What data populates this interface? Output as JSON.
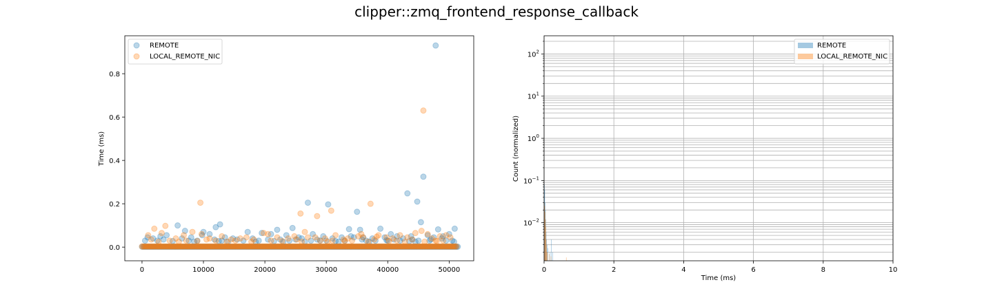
{
  "figure": {
    "title": "clipper::zmq_frontend_response_callback"
  },
  "colors": {
    "remote": "#1f77b4",
    "local": "#ff7f0e",
    "grid": "#b0b0b0"
  },
  "chart_data": [
    {
      "type": "scatter",
      "xlabel": "",
      "ylabel": "Time (ms)",
      "xlim": [
        -2800,
        54000
      ],
      "ylim": [
        -0.063,
        0.975
      ],
      "xticks": [
        0,
        10000,
        20000,
        30000,
        40000,
        50000
      ],
      "yticks": [
        0.0,
        0.2,
        0.4,
        0.6,
        0.8
      ],
      "xtick_labels": [
        "0",
        "10000",
        "20000",
        "30000",
        "40000",
        "50000"
      ],
      "ytick_labels": [
        "0.0",
        "0.2",
        "0.4",
        "0.6",
        "0.8"
      ],
      "grid": false,
      "legend": {
        "placement": "upper-left",
        "entries": [
          "REMOTE",
          "LOCAL_REMOTE_NIC"
        ]
      },
      "series": [
        {
          "name": "REMOTE",
          "color": "#1f77b4",
          "alpha": 0.3,
          "baseline": {
            "x_range": [
              0,
              51500
            ],
            "y": 0.002
          },
          "points": [
            [
              47800,
              0.93
            ],
            [
              45800,
              0.325
            ],
            [
              43200,
              0.248
            ],
            [
              44800,
              0.21
            ],
            [
              27000,
              0.205
            ],
            [
              30300,
              0.197
            ],
            [
              35000,
              0.163
            ],
            [
              5800,
              0.1
            ],
            [
              12700,
              0.105
            ],
            [
              12000,
              0.092
            ],
            [
              24500,
              0.088
            ],
            [
              33700,
              0.083
            ],
            [
              38800,
              0.085
            ],
            [
              35500,
              0.08
            ],
            [
              48200,
              0.082
            ],
            [
              50900,
              0.085
            ],
            [
              45400,
              0.115
            ],
            [
              22000,
              0.08
            ],
            [
              7000,
              0.075
            ],
            [
              10000,
              0.07
            ],
            [
              17200,
              0.07
            ],
            [
              9800,
              0.055
            ],
            [
              11000,
              0.06
            ],
            [
              13500,
              0.045
            ],
            [
              14800,
              0.04
            ],
            [
              19500,
              0.065
            ],
            [
              21000,
              0.06
            ],
            [
              23500,
              0.055
            ],
            [
              25500,
              0.045
            ],
            [
              27800,
              0.06
            ],
            [
              29500,
              0.05
            ],
            [
              31000,
              0.04
            ],
            [
              32500,
              0.045
            ],
            [
              34000,
              0.05
            ],
            [
              36000,
              0.045
            ],
            [
              37500,
              0.04
            ],
            [
              39500,
              0.045
            ],
            [
              40500,
              0.06
            ],
            [
              41500,
              0.05
            ],
            [
              42500,
              0.04
            ],
            [
              43800,
              0.05
            ],
            [
              46500,
              0.055
            ],
            [
              47500,
              0.045
            ],
            [
              49000,
              0.05
            ],
            [
              50000,
              0.06
            ],
            [
              900,
              0.045
            ],
            [
              1800,
              0.04
            ],
            [
              3000,
              0.05
            ],
            [
              4000,
              0.055
            ],
            [
              6500,
              0.04
            ],
            [
              8000,
              0.045
            ],
            [
              15500,
              0.035
            ],
            [
              18000,
              0.04
            ],
            [
              26000,
              0.04
            ],
            [
              28500,
              0.035
            ],
            [
              33000,
              0.03
            ],
            [
              38000,
              0.03
            ],
            [
              44000,
              0.035
            ],
            [
              48800,
              0.04
            ],
            [
              50800,
              0.025
            ],
            [
              3500,
              0.035
            ],
            [
              9000,
              0.03
            ],
            [
              16500,
              0.03
            ],
            [
              20500,
              0.035
            ],
            [
              24000,
              0.03
            ],
            [
              30000,
              0.03
            ],
            [
              36500,
              0.03
            ],
            [
              41000,
              0.035
            ],
            [
              45000,
              0.03
            ],
            [
              2500,
              0.03
            ],
            [
              11800,
              0.035
            ],
            [
              22500,
              0.035
            ],
            [
              34500,
              0.045
            ],
            [
              39800,
              0.032
            ],
            [
              46800,
              0.03
            ],
            [
              500,
              0.03
            ],
            [
              7600,
              0.03
            ],
            [
              13000,
              0.03
            ],
            [
              19000,
              0.03
            ],
            [
              25000,
              0.035
            ],
            [
              29000,
              0.03
            ],
            [
              35800,
              0.035
            ],
            [
              42000,
              0.03
            ],
            [
              47000,
              0.035
            ],
            [
              5000,
              0.028
            ],
            [
              12500,
              0.028
            ],
            [
              21500,
              0.028
            ],
            [
              27500,
              0.03
            ],
            [
              31500,
              0.028
            ],
            [
              40000,
              0.03
            ],
            [
              43500,
              0.028
            ],
            [
              49500,
              0.03
            ],
            [
              8500,
              0.025
            ],
            [
              14000,
              0.025
            ],
            [
              18500,
              0.025
            ],
            [
              23000,
              0.025
            ],
            [
              26500,
              0.025
            ],
            [
              32000,
              0.025
            ],
            [
              37000,
              0.025
            ],
            [
              44500,
              0.025
            ],
            [
              50500,
              0.03
            ]
          ]
        },
        {
          "name": "LOCAL_REMOTE_NIC",
          "color": "#ff7f0e",
          "alpha": 0.3,
          "baseline": {
            "x_range": [
              0,
              51200
            ],
            "y": 0.003
          },
          "points": [
            [
              45800,
              0.63
            ],
            [
              9500,
              0.205
            ],
            [
              37200,
              0.2
            ],
            [
              25800,
              0.155
            ],
            [
              30800,
              0.168
            ],
            [
              28500,
              0.143
            ],
            [
              3800,
              0.098
            ],
            [
              8200,
              0.07
            ],
            [
              2000,
              0.085
            ],
            [
              6800,
              0.055
            ],
            [
              9700,
              0.06
            ],
            [
              13000,
              0.05
            ],
            [
              17000,
              0.045
            ],
            [
              19800,
              0.065
            ],
            [
              20500,
              0.06
            ],
            [
              24800,
              0.05
            ],
            [
              26500,
              0.07
            ],
            [
              28200,
              0.045
            ],
            [
              31500,
              0.055
            ],
            [
              33500,
              0.04
            ],
            [
              35200,
              0.05
            ],
            [
              38500,
              0.055
            ],
            [
              39800,
              0.045
            ],
            [
              42000,
              0.055
            ],
            [
              44500,
              0.065
            ],
            [
              45500,
              0.075
            ],
            [
              46500,
              0.06
            ],
            [
              48500,
              0.05
            ],
            [
              49500,
              0.055
            ],
            [
              1000,
              0.055
            ],
            [
              3200,
              0.065
            ],
            [
              5500,
              0.04
            ],
            [
              11000,
              0.04
            ],
            [
              14500,
              0.035
            ],
            [
              16000,
              0.04
            ],
            [
              22000,
              0.045
            ],
            [
              23800,
              0.04
            ],
            [
              27000,
              0.045
            ],
            [
              29800,
              0.04
            ],
            [
              32800,
              0.035
            ],
            [
              36000,
              0.045
            ],
            [
              40800,
              0.04
            ],
            [
              43200,
              0.045
            ],
            [
              47200,
              0.04
            ],
            [
              50200,
              0.045
            ],
            [
              1500,
              0.035
            ],
            [
              4500,
              0.03
            ],
            [
              7200,
              0.03
            ],
            [
              10500,
              0.035
            ],
            [
              12000,
              0.03
            ],
            [
              15200,
              0.03
            ],
            [
              18200,
              0.035
            ],
            [
              21000,
              0.03
            ],
            [
              25200,
              0.035
            ],
            [
              29000,
              0.03
            ],
            [
              31000,
              0.03
            ],
            [
              34200,
              0.03
            ],
            [
              37800,
              0.035
            ],
            [
              41500,
              0.03
            ],
            [
              44000,
              0.035
            ],
            [
              47800,
              0.03
            ],
            [
              49000,
              0.03
            ],
            [
              2700,
              0.025
            ],
            [
              6000,
              0.025
            ],
            [
              9000,
              0.028
            ],
            [
              13800,
              0.025
            ],
            [
              17800,
              0.025
            ],
            [
              22800,
              0.028
            ],
            [
              26000,
              0.025
            ],
            [
              30200,
              0.025
            ],
            [
              33000,
              0.028
            ],
            [
              36800,
              0.025
            ],
            [
              40200,
              0.028
            ],
            [
              42800,
              0.025
            ],
            [
              46000,
              0.025
            ],
            [
              48000,
              0.028
            ],
            [
              38200,
              0.048
            ],
            [
              35700,
              0.06
            ]
          ]
        }
      ]
    },
    {
      "type": "histogram",
      "xlabel": "Time (ms)",
      "ylabel": "Count (normalized)",
      "xlim": [
        0,
        10
      ],
      "ylog": true,
      "ylim": [
        0.00125,
        270
      ],
      "xticks": [
        0,
        2,
        4,
        6,
        8,
        10
      ],
      "xtick_labels": [
        "0",
        "2",
        "4",
        "6",
        "8",
        "10"
      ],
      "yticks_major": [
        0.01,
        0.1,
        1,
        10,
        100
      ],
      "ytick_labels": [
        {
          "base": "10",
          "exp": "−2"
        },
        {
          "base": "10",
          "exp": "−1"
        },
        {
          "base": "10",
          "exp": "0"
        },
        {
          "base": "10",
          "exp": "1"
        },
        {
          "base": "10",
          "exp": "2"
        }
      ],
      "grid": true,
      "legend": {
        "placement": "upper-right",
        "entries": [
          "REMOTE",
          "LOCAL_REMOTE_NIC"
        ]
      },
      "series": [
        {
          "name": "REMOTE",
          "color": "#1f77b4",
          "alpha": 0.4,
          "bin_width": 0.01,
          "bins": [
            [
              0.0,
              0.08
            ],
            [
              0.01,
              0.06
            ],
            [
              0.02,
              0.03
            ],
            [
              0.03,
              0.02
            ],
            [
              0.04,
              0.012
            ],
            [
              0.05,
              0.006
            ],
            [
              0.06,
              0.004
            ],
            [
              0.08,
              0.003
            ],
            [
              0.1,
              0.0025
            ],
            [
              0.16,
              0.002
            ],
            [
              0.2,
              0.004
            ],
            [
              0.24,
              0.002
            ]
          ]
        },
        {
          "name": "LOCAL_REMOTE_NIC",
          "color": "#ff7f0e",
          "alpha": 0.4,
          "bin_width": 0.01,
          "bins": [
            [
              0.0,
              0.03
            ],
            [
              0.01,
              0.025
            ],
            [
              0.02,
              0.018
            ],
            [
              0.03,
              0.012
            ],
            [
              0.04,
              0.008
            ],
            [
              0.05,
              0.004
            ],
            [
              0.06,
              0.003
            ],
            [
              0.07,
              0.002
            ],
            [
              0.09,
              0.002
            ],
            [
              0.14,
              0.0018
            ],
            [
              0.19,
              0.0016
            ],
            [
              0.63,
              0.0015
            ]
          ]
        }
      ]
    }
  ]
}
